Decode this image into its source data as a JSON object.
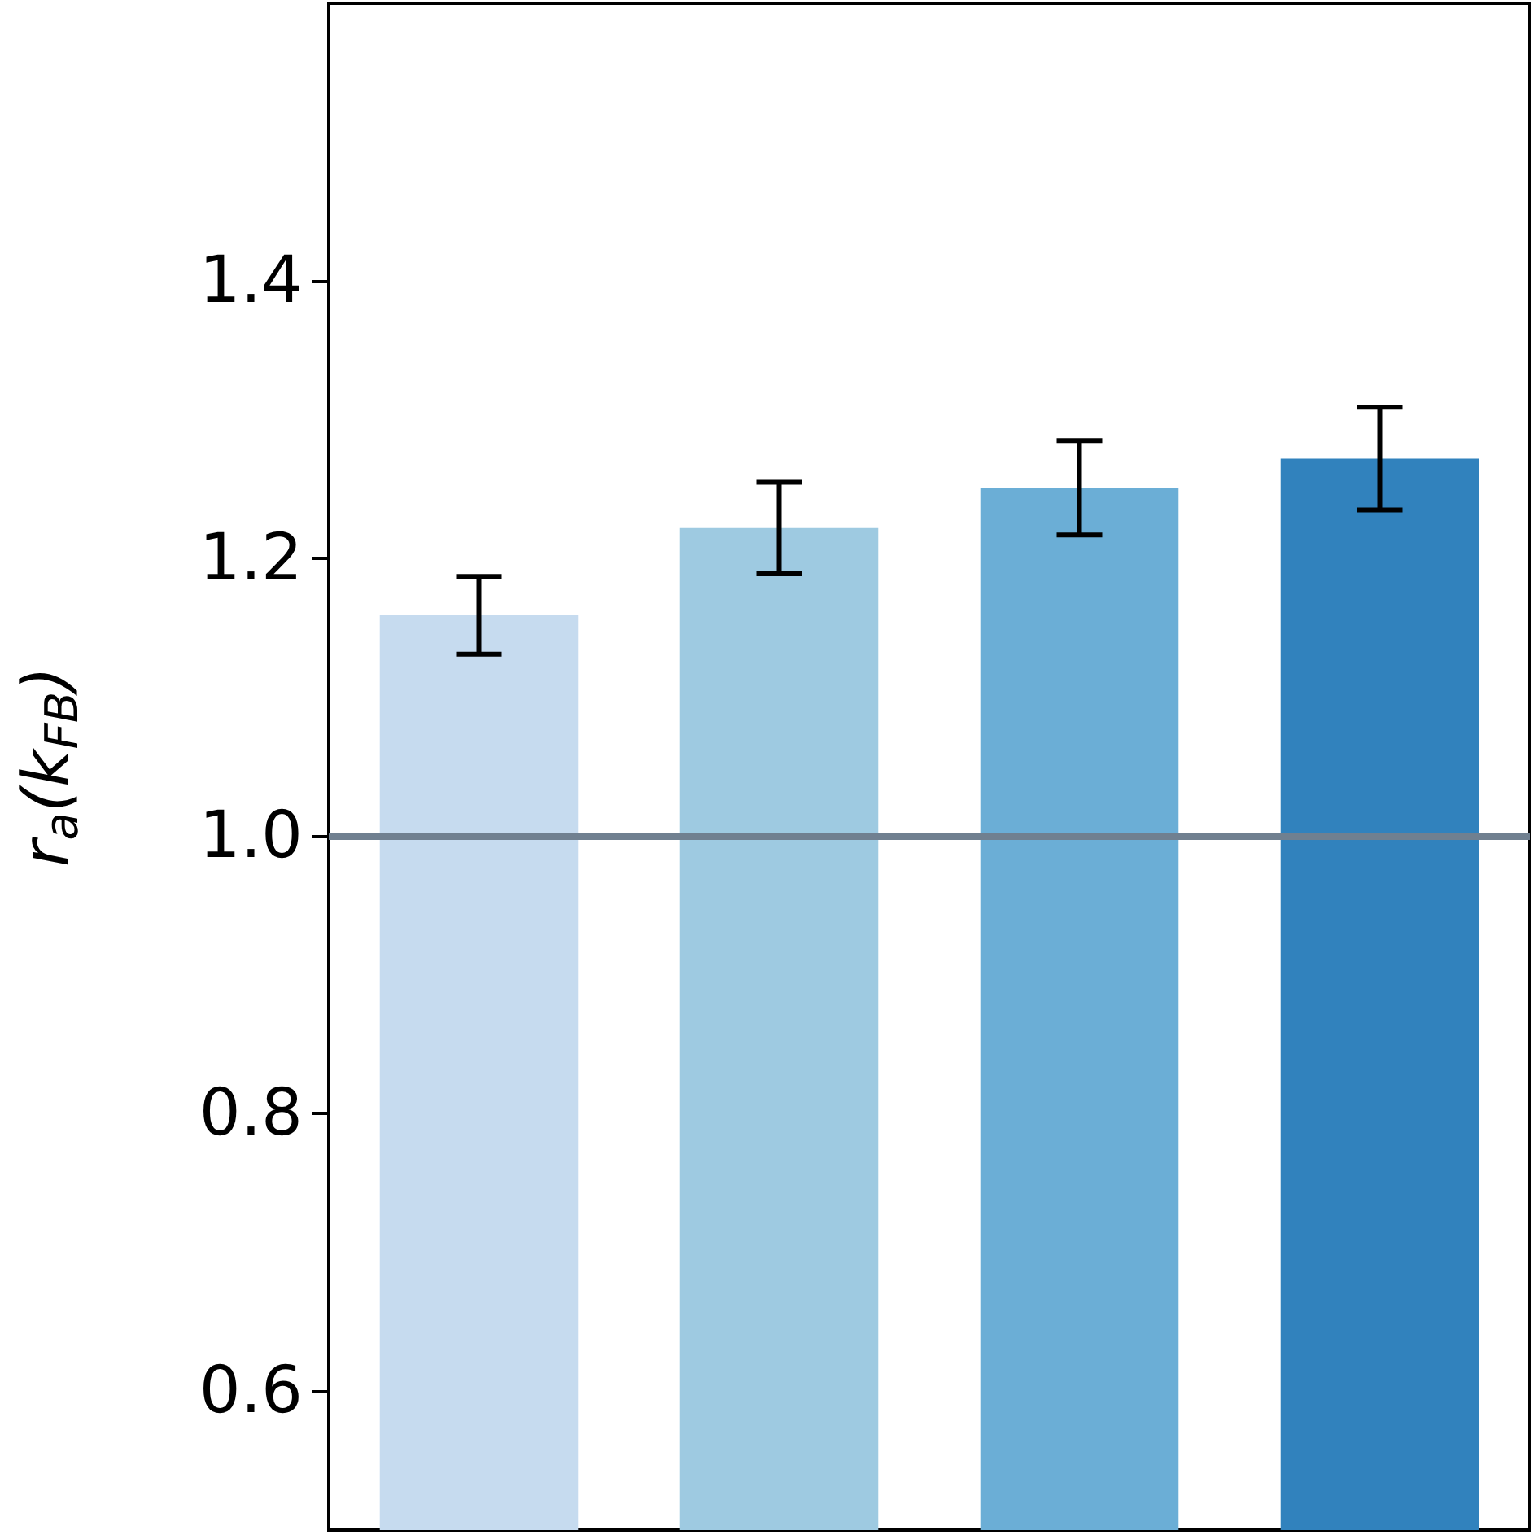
{
  "chart_data": {
    "type": "bar",
    "ylabel": "r$_{a}$(k$_{FB}$)",
    "categories": [
      null,
      null,
      null,
      null
    ],
    "values": [
      1.159,
      1.222,
      1.251,
      1.272
    ],
    "colors": [
      "#c6dbef",
      "#9ecae1",
      "#6baed6",
      "#3182bd"
    ],
    "errors": [
      0.028,
      0.033,
      0.034,
      0.037
    ],
    "ylim": [
      0.5,
      1.6
    ],
    "yticks": [
      {
        "value": 0.6,
        "label": "0.6"
      },
      {
        "value": 0.8,
        "label": "0.8"
      },
      {
        "value": 1,
        "label": "1.0"
      },
      {
        "value": 1.2,
        "label": "1.2"
      },
      {
        "value": 1.4,
        "label": "1.4"
      }
    ],
    "ref_lines": [
      {
        "axis": "y",
        "value": 1,
        "label": null,
        "color": "#708090"
      }
    ],
    "tick_labels": "y",
    "grid": false
  }
}
